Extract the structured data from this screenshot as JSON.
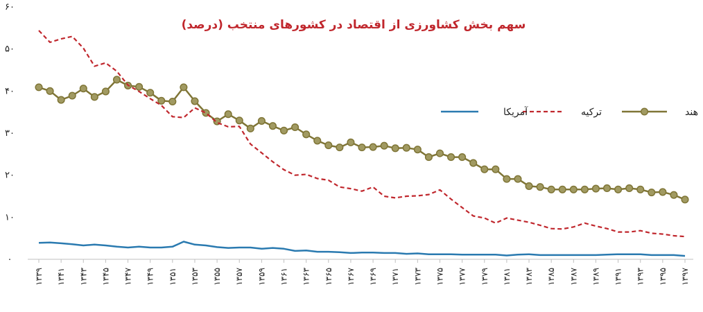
{
  "chart_data": {
    "type": "line",
    "title": "سهم بخش کشاورزی از اقتصاد در کشورهای منتخب (درصد)",
    "xlabel": "",
    "ylabel": "",
    "ylim": [
      0,
      60
    ],
    "yticks": [
      "۰",
      "۱۰",
      "۲۰",
      "۳۰",
      "۴۰",
      "۵۰",
      "۶۰"
    ],
    "grid": false,
    "legend_position": "right",
    "x": [
      1339,
      1340,
      1341,
      1342,
      1343,
      1344,
      1345,
      1346,
      1347,
      1348,
      1349,
      1350,
      1351,
      1352,
      1353,
      1354,
      1355,
      1356,
      1357,
      1358,
      1359,
      1360,
      1361,
      1362,
      1363,
      1364,
      1365,
      1366,
      1367,
      1368,
      1369,
      1370,
      1371,
      1372,
      1373,
      1374,
      1375,
      1376,
      1377,
      1378,
      1379,
      1380,
      1381,
      1382,
      1383,
      1384,
      1385,
      1386,
      1387,
      1388,
      1389,
      1390,
      1391,
      1392,
      1393,
      1394,
      1395,
      1396,
      1397
    ],
    "x_tick_labels": [
      "۱۳۳۹",
      "۱۳۴۱",
      "۱۳۴۳",
      "۱۳۴۵",
      "۱۳۴۷",
      "۱۳۴۹",
      "۱۳۵۱",
      "۱۳۵۳",
      "۱۳۵۵",
      "۱۳۵۷",
      "۱۳۵۹",
      "۱۳۶۱",
      "۱۳۶۳",
      "۱۳۶۵",
      "۱۳۶۷",
      "۱۳۶۹",
      "۱۳۷۱",
      "۱۳۷۳",
      "۱۳۷۵",
      "۱۳۷۷",
      "۱۳۷۹",
      "۱۳۸۱",
      "۱۳۸۳",
      "۱۳۸۵",
      "۱۳۸۷",
      "۱۳۸۹",
      "۱۳۹۱",
      "۱۳۹۳",
      "۱۳۹۵",
      "۱۳۹۷"
    ],
    "series": [
      {
        "name": "هند",
        "color": "#7f7536",
        "marker_color": "#a19a62",
        "dash": "solid",
        "markers": true,
        "values": [
          40.9,
          40.0,
          37.9,
          38.9,
          40.6,
          38.6,
          39.9,
          42.7,
          41.3,
          41.0,
          39.6,
          37.7,
          37.5,
          40.9,
          37.6,
          34.8,
          32.8,
          34.5,
          33.0,
          31.1,
          32.9,
          31.7,
          30.6,
          31.4,
          29.7,
          28.2,
          27.1,
          26.6,
          27.8,
          26.6,
          26.7,
          27.0,
          26.4,
          26.5,
          26.1,
          24.3,
          25.2,
          24.3,
          24.3,
          22.9,
          21.4,
          21.4,
          19.1,
          19.1,
          17.4,
          17.2,
          16.6,
          16.6,
          16.6,
          16.6,
          16.8,
          16.9,
          16.6,
          16.9,
          16.6,
          15.9,
          16.0,
          15.3,
          14.2
        ]
      },
      {
        "name": "ترکیه",
        "color": "#c0272d",
        "dash": "dashed",
        "markers": false,
        "values": [
          54.4,
          51.6,
          52.4,
          53.0,
          50.2,
          45.9,
          46.7,
          44.7,
          41.4,
          39.9,
          38.2,
          36.6,
          33.9,
          33.7,
          36.0,
          34.8,
          32.5,
          31.5,
          31.6,
          27.4,
          25.3,
          23.2,
          21.3,
          20.0,
          20.2,
          19.2,
          18.8,
          17.2,
          16.8,
          16.2,
          17.2,
          15.0,
          14.6,
          15.0,
          15.1,
          15.4,
          16.5,
          14.3,
          12.3,
          10.3,
          9.8,
          8.6,
          9.8,
          9.3,
          8.8,
          8.1,
          7.3,
          7.2,
          7.7,
          8.6,
          7.9,
          7.3,
          6.5,
          6.5,
          6.8,
          6.2,
          6.0,
          5.6,
          5.4
        ]
      },
      {
        "name": "آمریکا",
        "color": "#2a7ab0",
        "dash": "solid",
        "markers": false,
        "values": [
          3.9,
          4.0,
          3.8,
          3.6,
          3.3,
          3.5,
          3.3,
          3.0,
          2.8,
          3.0,
          2.8,
          2.8,
          3.0,
          4.2,
          3.5,
          3.3,
          2.9,
          2.7,
          2.8,
          2.8,
          2.5,
          2.7,
          2.5,
          2.0,
          2.1,
          1.8,
          1.8,
          1.7,
          1.5,
          1.6,
          1.6,
          1.5,
          1.5,
          1.3,
          1.4,
          1.2,
          1.2,
          1.2,
          1.1,
          1.1,
          1.1,
          1.1,
          0.9,
          1.1,
          1.2,
          1.0,
          1.0,
          1.0,
          1.0,
          1.0,
          1.0,
          1.1,
          1.2,
          1.2,
          1.2,
          1.0,
          1.0,
          1.0,
          0.8
        ]
      }
    ]
  }
}
